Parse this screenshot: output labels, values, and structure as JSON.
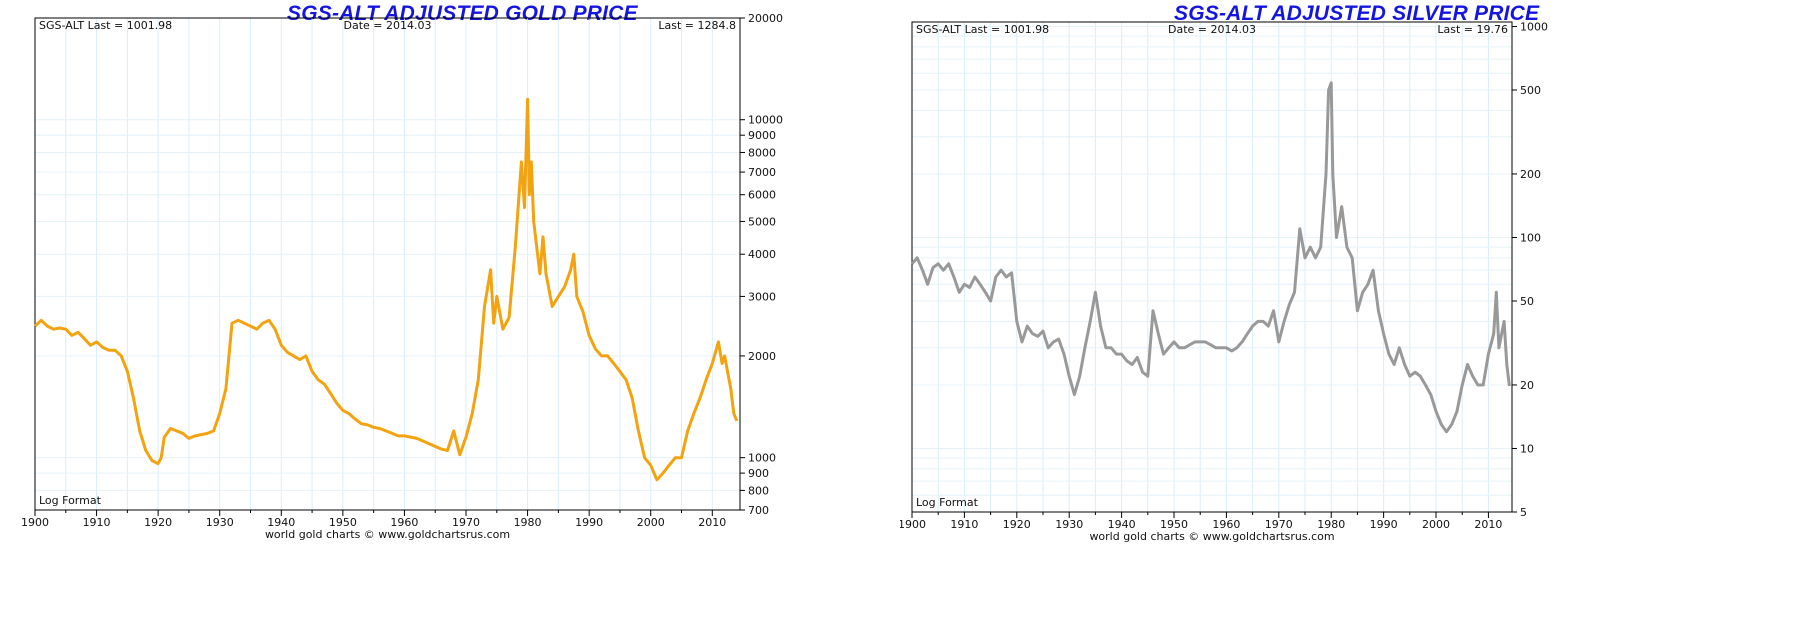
{
  "chart_data": [
    {
      "type": "line",
      "title": "SGS-ALT ADJUSTED  GOLD PRICE",
      "header_left": "SGS-ALT Last = 1001.98",
      "header_center": "Date = 2014.03",
      "header_right": "Last = 1284.8",
      "log_label": "Log Format",
      "footer": "world gold charts © www.goldchartsrus.com",
      "y_scale": "log",
      "ylim": [
        700,
        20000
      ],
      "xlim": [
        1900,
        2014.5
      ],
      "y_ticks": [
        700,
        800,
        900,
        1000,
        2000,
        3000,
        4000,
        5000,
        6000,
        7000,
        8000,
        9000,
        10000,
        20000
      ],
      "y_tick_labels": [
        "700",
        "800",
        "900",
        "1000",
        "2000",
        "3000",
        "4000",
        "5000",
        "6000",
        "7000",
        "8000",
        "9000",
        "10000",
        "20000"
      ],
      "x_ticks": [
        1900,
        1910,
        1920,
        1930,
        1940,
        1950,
        1960,
        1970,
        1980,
        1990,
        2000,
        2010
      ],
      "x_tick_labels": [
        "1900",
        "1910",
        "1920",
        "1930",
        "1940",
        "1950",
        "1960",
        "1970",
        "1980",
        "1990",
        "2000",
        "2010"
      ],
      "grid": true,
      "color": "#f2a30f",
      "series": [
        {
          "x": [
            1900,
            1901,
            1902,
            1903,
            1904,
            1905,
            1906,
            1907,
            1908,
            1909,
            1910,
            1911,
            1912,
            1913,
            1914,
            1915,
            1916,
            1917,
            1918,
            1919,
            1920,
            1920.5,
            1921,
            1922,
            1923,
            1924,
            1925,
            1926,
            1927,
            1928,
            1929,
            1930,
            1931,
            1932,
            1933,
            1934,
            1935,
            1936,
            1937,
            1938,
            1939,
            1940,
            1941,
            1942,
            1943,
            1944,
            1945,
            1946,
            1947,
            1948,
            1949,
            1950,
            1951,
            1952,
            1953,
            1954,
            1955,
            1956,
            1957,
            1958,
            1959,
            1960,
            1961,
            1962,
            1963,
            1964,
            1965,
            1966,
            1967,
            1968,
            1969,
            1970,
            1971,
            1972,
            1973,
            1974,
            1974.5,
            1975,
            1976,
            1977,
            1978,
            1979,
            1979.5,
            1980,
            1980.3,
            1980.6,
            1981,
            1982,
            1982.5,
            1983,
            1984,
            1985,
            1986,
            1987,
            1987.5,
            1988,
            1989,
            1990,
            1991,
            1992,
            1993,
            1994,
            1995,
            1996,
            1997,
            1998,
            1999,
            2000,
            2001,
            2002,
            2003,
            2004,
            2005,
            2006,
            2007,
            2008,
            2009,
            2010,
            2011,
            2011.6,
            2012,
            2013,
            2013.5,
            2014
          ],
          "y": [
            2450,
            2550,
            2450,
            2400,
            2420,
            2400,
            2300,
            2350,
            2250,
            2150,
            2200,
            2120,
            2080,
            2080,
            2000,
            1800,
            1500,
            1200,
            1050,
            980,
            960,
            1000,
            1150,
            1220,
            1200,
            1180,
            1140,
            1160,
            1170,
            1180,
            1200,
            1350,
            1600,
            2500,
            2550,
            2500,
            2450,
            2400,
            2500,
            2550,
            2400,
            2150,
            2050,
            2000,
            1950,
            2000,
            1800,
            1700,
            1650,
            1550,
            1450,
            1380,
            1350,
            1300,
            1260,
            1250,
            1230,
            1220,
            1200,
            1180,
            1160,
            1160,
            1150,
            1140,
            1120,
            1100,
            1080,
            1060,
            1050,
            1200,
            1020,
            1150,
            1350,
            1700,
            2800,
            3600,
            2500,
            3000,
            2400,
            2600,
            4200,
            7500,
            5500,
            11500,
            6000,
            7500,
            5000,
            3500,
            4500,
            3500,
            2800,
            3000,
            3200,
            3600,
            4000,
            3000,
            2700,
            2300,
            2100,
            2000,
            2000,
            1900,
            1800,
            1700,
            1500,
            1200,
            1000,
            950,
            860,
            900,
            950,
            1000,
            1000,
            1200,
            1350,
            1500,
            1700,
            1900,
            2200,
            1900,
            2000,
            1600,
            1350,
            1284.8
          ]
        }
      ]
    },
    {
      "type": "line",
      "title": "SGS-ALT ADJUSTED  SILVER PRICE",
      "header_left": "SGS-ALT Last = 1001.98",
      "header_center": "Date = 2014.03",
      "header_right": "Last = 19.76",
      "log_label": "Log Format",
      "footer": "world gold charts © www.goldchartsrus.com",
      "y_scale": "log",
      "ylim": [
        5,
        1050
      ],
      "xlim": [
        1900,
        2014.5
      ],
      "y_ticks": [
        5,
        10,
        20,
        50,
        100,
        200,
        500,
        1000
      ],
      "y_tick_labels": [
        "5",
        "10",
        "20",
        "50",
        "100",
        "200",
        "500",
        "1000"
      ],
      "x_ticks": [
        1900,
        1910,
        1920,
        1930,
        1940,
        1950,
        1960,
        1970,
        1980,
        1990,
        2000,
        2010
      ],
      "x_tick_labels": [
        "1900",
        "1910",
        "1920",
        "1930",
        "1940",
        "1950",
        "1960",
        "1970",
        "1980",
        "1990",
        "2000",
        "2010"
      ],
      "grid": true,
      "color": "#999999",
      "series": [
        {
          "x": [
            1900,
            1901,
            1902,
            1903,
            1904,
            1905,
            1906,
            1907,
            1908,
            1909,
            1910,
            1911,
            1912,
            1913,
            1914,
            1915,
            1916,
            1917,
            1918,
            1919,
            1920,
            1921,
            1922,
            1923,
            1924,
            1925,
            1926,
            1927,
            1928,
            1929,
            1930,
            1931,
            1932,
            1933,
            1934,
            1935,
            1936,
            1937,
            1938,
            1939,
            1940,
            1941,
            1942,
            1943,
            1944,
            1945,
            1946,
            1947,
            1948,
            1949,
            1950,
            1951,
            1952,
            1953,
            1954,
            1955,
            1956,
            1957,
            1958,
            1959,
            1960,
            1961,
            1962,
            1963,
            1964,
            1965,
            1966,
            1967,
            1968,
            1969,
            1970,
            1971,
            1972,
            1973,
            1974,
            1975,
            1976,
            1977,
            1978,
            1979,
            1979.5,
            1980,
            1980.3,
            1981,
            1982,
            1983,
            1984,
            1985,
            1986,
            1987,
            1988,
            1989,
            1990,
            1991,
            1992,
            1993,
            1994,
            1995,
            1996,
            1997,
            1998,
            1999,
            2000,
            2001,
            2002,
            2003,
            2004,
            2005,
            2006,
            2007,
            2008,
            2009,
            2010,
            2011,
            2011.5,
            2012,
            2013,
            2013.5,
            2014
          ],
          "y": [
            75,
            80,
            70,
            60,
            72,
            75,
            70,
            75,
            65,
            55,
            60,
            58,
            65,
            60,
            55,
            50,
            65,
            70,
            65,
            68,
            40,
            32,
            38,
            35,
            34,
            36,
            30,
            32,
            33,
            28,
            22,
            18,
            22,
            30,
            40,
            55,
            38,
            30,
            30,
            28,
            28,
            26,
            25,
            27,
            23,
            22,
            45,
            35,
            28,
            30,
            32,
            30,
            30,
            31,
            32,
            32,
            32,
            31,
            30,
            30,
            30,
            29,
            30,
            32,
            35,
            38,
            40,
            40,
            38,
            45,
            32,
            40,
            48,
            55,
            110,
            80,
            90,
            80,
            90,
            200,
            500,
            540,
            200,
            100,
            140,
            90,
            80,
            45,
            55,
            60,
            70,
            45,
            35,
            28,
            25,
            30,
            25,
            22,
            23,
            22,
            20,
            18,
            15,
            13,
            12,
            13,
            15,
            20,
            25,
            22,
            20,
            20,
            28,
            35,
            55,
            30,
            40,
            25,
            19.76
          ]
        }
      ]
    }
  ]
}
